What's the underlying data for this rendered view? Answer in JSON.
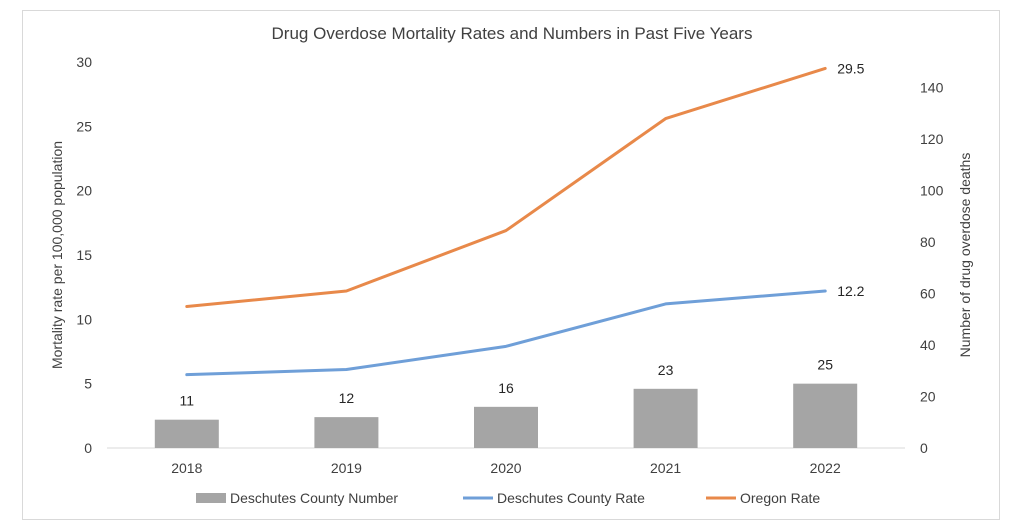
{
  "chart_data": {
    "type": "bar+line",
    "title": "Drug Overdose Mortality Rates and Numbers in Past Five Years",
    "categories": [
      "2018",
      "2019",
      "2020",
      "2021",
      "2022"
    ],
    "ylabel_left": "Mortality rate per 100,000 population",
    "ylabel_right": "Number of drug overdose deaths",
    "ylim_left": [
      0,
      30
    ],
    "yticks_left": [
      0,
      5,
      10,
      15,
      20,
      25,
      30
    ],
    "ylim_right": [
      0,
      150
    ],
    "yticks_right": [
      0,
      20,
      40,
      60,
      80,
      100,
      120,
      140
    ],
    "series": [
      {
        "name": "Deschutes County Number",
        "type": "bar",
        "axis": "right",
        "color": "#a5a5a5",
        "values": [
          11,
          12,
          16,
          23,
          25
        ],
        "labels": [
          "11",
          "12",
          "16",
          "23",
          "25"
        ]
      },
      {
        "name": "Deschutes County Rate",
        "type": "line",
        "axis": "left",
        "color": "#6f9fd8",
        "values": [
          5.7,
          6.1,
          7.9,
          11.2,
          12.2
        ],
        "end_label": "12.2"
      },
      {
        "name": "Oregon Rate",
        "type": "line",
        "axis": "left",
        "color": "#e8894a",
        "values": [
          11.0,
          12.2,
          16.9,
          25.6,
          29.5
        ],
        "end_label": "29.5"
      }
    ],
    "legend_position": "bottom"
  }
}
